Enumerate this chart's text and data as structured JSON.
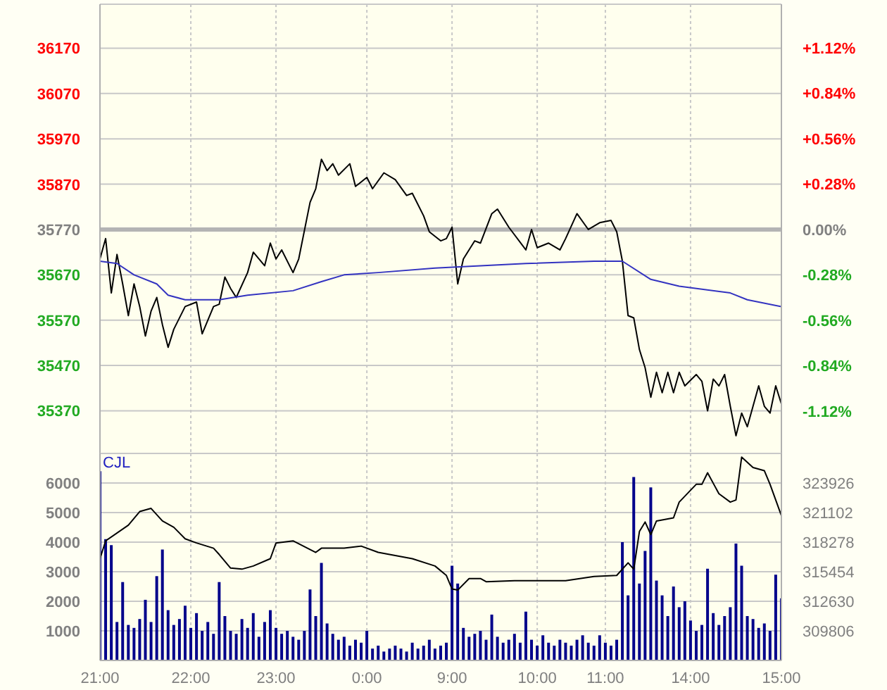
{
  "chart_data": [
    {
      "type": "line",
      "tick_labels": "y",
      "grid": true,
      "categories": [
        null,
        null,
        null,
        null,
        null,
        null,
        null,
        null,
        null,
        null,
        null,
        null,
        null,
        null,
        null,
        null,
        null,
        null,
        null,
        null,
        null,
        null,
        null,
        null,
        null,
        null,
        null,
        null,
        null,
        null,
        null,
        null,
        null,
        null,
        null,
        null,
        null,
        null,
        null,
        null,
        null,
        null,
        null,
        null,
        null,
        null,
        null,
        null,
        null,
        null,
        null,
        null,
        null,
        null,
        null,
        null,
        null,
        null,
        null,
        null,
        null,
        null,
        null,
        null,
        null,
        null,
        null,
        null,
        null,
        null,
        null,
        null,
        null,
        null,
        null,
        null,
        null,
        null,
        null,
        null,
        null,
        null,
        null,
        null,
        null,
        null,
        null,
        null,
        null,
        null,
        null,
        null,
        null,
        null,
        null,
        null,
        null,
        null,
        null,
        null,
        null,
        null,
        null,
        null,
        null,
        null,
        null,
        null,
        null,
        null,
        null,
        null,
        null,
        null,
        null,
        null,
        null,
        null,
        null,
        null,
        null
      ],
      "series": [
        {
          "color": "#000000",
          "values": [
            35705,
            35750,
            35630,
            35715,
            35650,
            35580,
            35650,
            35600,
            35535,
            35590,
            35620,
            35560,
            35510,
            35550,
            null,
            35600,
            null,
            35610,
            35540,
            null,
            35600,
            35605,
            35665,
            35640,
            35620,
            null,
            35675,
            35720,
            null,
            35690,
            35740,
            35705,
            35725,
            null,
            35675,
            35705,
            null,
            35830,
            35860,
            35925,
            35900,
            35915,
            35890,
            null,
            35915,
            35865,
            null,
            35885,
            35860,
            null,
            35895,
            null,
            35880,
            null,
            35845,
            35850,
            null,
            35800,
            35765,
            null,
            35745,
            35750,
            35775,
            35650,
            35705,
            null,
            35745,
            35740,
            null,
            35805,
            35815,
            null,
            35775,
            null,
            null,
            35725,
            35770,
            35730,
            null,
            35740,
            null,
            35725,
            35750,
            null,
            35805,
            null,
            35770,
            null,
            35785,
            null,
            35790,
            35765,
            35700,
            35580,
            35575,
            35505,
            35465,
            35400,
            35455,
            35410,
            35455,
            35410,
            35455,
            35425,
            null,
            35450,
            35435,
            35370,
            35440,
            35425,
            35450,
            35380,
            35315,
            35365,
            35335,
            35380,
            35425,
            35380,
            35365,
            35425,
            35385
          ]
        },
        {
          "color": "#3333c0",
          "values": [
            35700,
            null,
            null,
            35695,
            null,
            null,
            35670,
            null,
            null,
            null,
            35650,
            null,
            35625,
            null,
            null,
            35615,
            null,
            null,
            null,
            null,
            null,
            35615,
            null,
            null,
            null,
            null,
            35625,
            null,
            null,
            null,
            null,
            null,
            null,
            null,
            35635,
            null,
            null,
            null,
            null,
            35655,
            null,
            null,
            null,
            35670,
            null,
            null,
            null,
            null,
            null,
            35675,
            null,
            null,
            null,
            null,
            null,
            null,
            null,
            null,
            null,
            35685,
            null,
            null,
            null,
            null,
            null,
            null,
            null,
            35690,
            null,
            null,
            null,
            null,
            null,
            null,
            null,
            35695,
            null,
            null,
            null,
            null,
            null,
            null,
            null,
            null,
            null,
            null,
            null,
            35700,
            null,
            null,
            null,
            null,
            35700,
            null,
            null,
            null,
            null,
            35660,
            null,
            null,
            null,
            null,
            35645,
            null,
            null,
            null,
            null,
            null,
            null,
            null,
            null,
            35630,
            null,
            null,
            35615,
            null,
            null,
            null,
            null,
            null,
            35600
          ]
        }
      ],
      "ylim": [
        35276,
        36267
      ],
      "yticks": [
        35370,
        35470,
        35570,
        35670,
        35770,
        35870,
        35970,
        36070,
        36170
      ],
      "y2lim": [
        -1.381,
        1.389
      ],
      "y2ticks": [
        {
          "value": -1.12,
          "label": "-1.12%"
        },
        {
          "value": -0.84,
          "label": "-0.84%"
        },
        {
          "value": -0.56,
          "label": "-0.56%"
        },
        {
          "value": -0.28,
          "label": "-0.28%"
        },
        {
          "value": 0,
          "label": "0.00%"
        },
        {
          "value": 0.28,
          "label": "+0.28%"
        },
        {
          "value": 0.56,
          "label": "+0.56%"
        },
        {
          "value": 0.84,
          "label": "+0.84%"
        },
        {
          "value": 1.12,
          "label": "+1.12%"
        }
      ],
      "ref_lines": [
        {
          "axis": "y",
          "value": 35770,
          "color": "#b4b4b4"
        }
      ]
    },
    {
      "type": "bar",
      "grid": true,
      "annotations": [
        "CJL"
      ],
      "categories": [
        "21:00",
        null,
        null,
        null,
        null,
        null,
        null,
        null,
        null,
        null,
        null,
        null,
        null,
        null,
        null,
        null,
        "22:00",
        null,
        null,
        null,
        null,
        null,
        null,
        null,
        null,
        null,
        null,
        null,
        null,
        null,
        null,
        "23:00",
        null,
        null,
        null,
        null,
        null,
        null,
        null,
        null,
        null,
        null,
        null,
        null,
        null,
        null,
        null,
        "0:00",
        null,
        null,
        null,
        null,
        null,
        null,
        null,
        null,
        null,
        null,
        null,
        null,
        null,
        null,
        "9:00",
        null,
        null,
        null,
        null,
        null,
        null,
        null,
        null,
        null,
        null,
        null,
        null,
        null,
        null,
        "10:00",
        null,
        null,
        null,
        null,
        null,
        null,
        null,
        null,
        null,
        null,
        null,
        "11:00",
        null,
        null,
        null,
        null,
        null,
        null,
        null,
        null,
        null,
        null,
        null,
        null,
        null,
        null,
        "14:00",
        null,
        null,
        null,
        null,
        null,
        null,
        null,
        null,
        null,
        null,
        null,
        null,
        null,
        null,
        null,
        "15:00"
      ],
      "series": [
        {
          "color": "#00008b",
          "values": [
            6400,
            4100,
            3900,
            1300,
            2650,
            1200,
            1100,
            1400,
            2050,
            1300,
            2850,
            3750,
            1700,
            1200,
            1400,
            1850,
            1100,
            1600,
            1000,
            1300,
            900,
            2650,
            1500,
            1000,
            900,
            1400,
            1100,
            1600,
            800,
            1300,
            1700,
            1100,
            900,
            1000,
            800,
            700,
            1000,
            2400,
            1500,
            3300,
            1250,
            900,
            700,
            800,
            500,
            700,
            600,
            1000,
            400,
            500,
            300,
            400,
            500,
            400,
            300,
            600,
            400,
            500,
            700,
            400,
            500,
            600,
            3200,
            2600,
            1100,
            800,
            900,
            1000,
            700,
            1550,
            800,
            600,
            700,
            900,
            600,
            1650,
            700,
            500,
            850,
            600,
            500,
            700,
            600,
            500,
            700,
            850,
            600,
            500,
            850,
            600,
            500,
            700,
            4000,
            2200,
            6200,
            2600,
            3700,
            5850,
            2700,
            2200,
            1500,
            2500,
            1800,
            2000,
            1350,
            1000,
            1200,
            3100,
            1600,
            1200,
            1500,
            1800,
            3950,
            3200,
            1500,
            1400,
            1100,
            1250,
            1000,
            2900,
            2100
          ]
        },
        {
          "type": "line",
          "axis": "y2",
          "color": "#000000",
          "values": [
            316700,
            318400,
            null,
            null,
            null,
            319900,
            null,
            321200,
            null,
            321500,
            null,
            320300,
            null,
            319700,
            null,
            318600,
            null,
            318200,
            null,
            null,
            317700,
            317100,
            null,
            315800,
            null,
            315700,
            null,
            316000,
            null,
            null,
            316700,
            318200,
            null,
            null,
            318400,
            null,
            null,
            null,
            317300,
            317700,
            null,
            null,
            null,
            317700,
            null,
            null,
            317900,
            null,
            null,
            317300,
            null,
            null,
            null,
            null,
            null,
            316700,
            null,
            null,
            null,
            316000,
            null,
            315100,
            313800,
            313700,
            null,
            314800,
            null,
            314800,
            314500,
            null,
            null,
            null,
            null,
            314600,
            null,
            null,
            null,
            null,
            null,
            null,
            null,
            null,
            314600,
            null,
            null,
            null,
            null,
            315000,
            null,
            null,
            null,
            315100,
            null,
            316300,
            315700,
            319300,
            320200,
            319000,
            320300,
            null,
            null,
            320600,
            322100,
            null,
            null,
            323800,
            323800,
            324900,
            null,
            322900,
            null,
            322100,
            322300,
            326400,
            null,
            325400,
            null,
            325100,
            323800,
            322300,
            320800
          ]
        }
      ],
      "ylim": [
        0,
        7000
      ],
      "yticks": [
        1000,
        2000,
        3000,
        4000,
        5000,
        6000
      ],
      "y2lim": [
        306982,
        326750
      ],
      "y2ticks": [
        309806,
        312630,
        315454,
        318278,
        321102,
        323926
      ]
    }
  ]
}
